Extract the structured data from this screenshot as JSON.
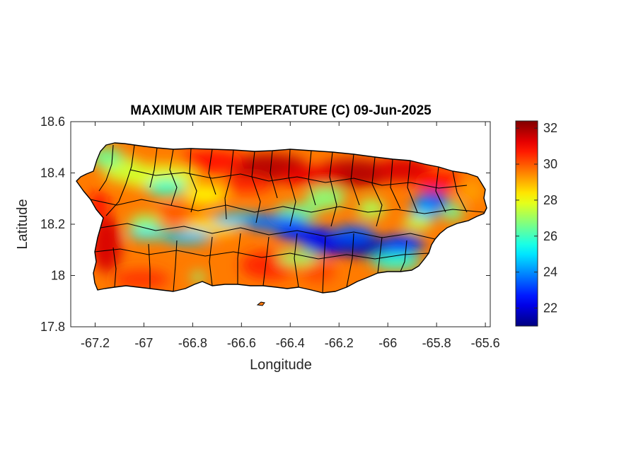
{
  "title": "MAXIMUM AIR TEMPERATURE (C) 09-Jun-2025",
  "xlabel": "Longitude",
  "ylabel": "Latitude",
  "x_axis": {
    "min": -67.3,
    "max": -65.58,
    "ticks": [
      -67.2,
      -67,
      -66.8,
      -66.6,
      -66.4,
      -66.2,
      -66,
      -65.8,
      -65.6
    ],
    "tick_labels": [
      "-67.2",
      "-67",
      "-66.8",
      "-66.6",
      "-66.4",
      "-66.2",
      "-66",
      "-65.8",
      "-65.6"
    ]
  },
  "y_axis": {
    "min": 17.8,
    "max": 18.6,
    "ticks": [
      17.8,
      18,
      18.2,
      18.4,
      18.6
    ],
    "tick_labels": [
      "17.8",
      "18",
      "18.2",
      "18.4",
      "18.6"
    ]
  },
  "colorbar": {
    "min": 21,
    "max": 32.4,
    "ticks": [
      22,
      24,
      26,
      28,
      30,
      32
    ],
    "tick_labels": [
      "22",
      "24",
      "26",
      "28",
      "30",
      "32"
    ],
    "colormap": "jet",
    "colors": [
      "#00008f",
      "#0000ff",
      "#0080ff",
      "#00ffff",
      "#80ff80",
      "#ffff00",
      "#ff8000",
      "#ff0000",
      "#800000"
    ]
  },
  "chart_data": {
    "type": "heatmap",
    "title": "MAXIMUM AIR TEMPERATURE (C) 09-Jun-2025",
    "xlabel": "Longitude",
    "ylabel": "Latitude",
    "xlim": [
      -67.3,
      -65.58
    ],
    "ylim": [
      17.8,
      18.6
    ],
    "variable_units": "C",
    "value_range": [
      21,
      32.4
    ],
    "region": "Puerto Rico",
    "hotspots": [
      {
        "lon": -66.45,
        "lat": 18.41,
        "value": 32
      },
      {
        "lon": -66.15,
        "lat": 18.4,
        "value": 32
      },
      {
        "lon": -66.0,
        "lat": 18.42,
        "value": 31.5
      },
      {
        "lon": -67.15,
        "lat": 18.1,
        "value": 31.5
      },
      {
        "lon": -66.5,
        "lat": 18.02,
        "value": 30.5
      }
    ],
    "coolspots": [
      {
        "lon": -66.55,
        "lat": 18.17,
        "value": 22.5
      },
      {
        "lon": -66.22,
        "lat": 18.12,
        "value": 21.5
      },
      {
        "lon": -66.02,
        "lat": 18.09,
        "value": 22
      },
      {
        "lon": -66.32,
        "lat": 18.21,
        "value": 23
      },
      {
        "lon": -65.78,
        "lat": 18.29,
        "value": 22.5
      },
      {
        "lon": -66.95,
        "lat": 18.38,
        "value": 25.5
      }
    ]
  }
}
